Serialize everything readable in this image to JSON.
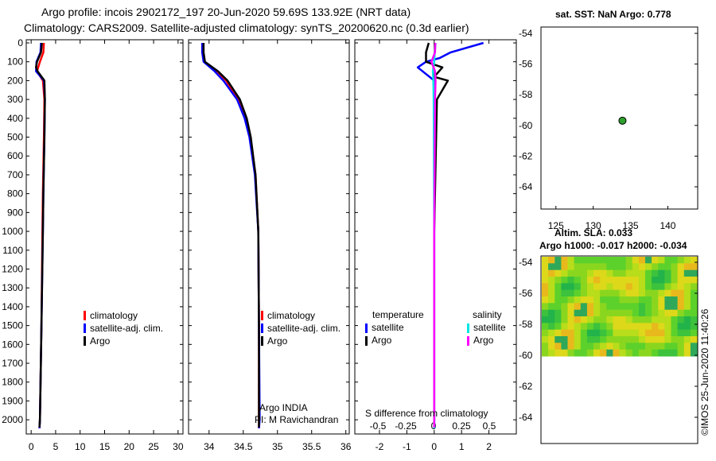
{
  "title": {
    "line1": "Argo profile: incois 2902172_197 20-Jun-2020 59.69S 133.92E (NRT data)",
    "line2": "Climatology: CARS2009. Satellite-adjusted climatology: synTS_20200620.nc (0.3d earlier)"
  },
  "colors": {
    "climatology": "#ff0000",
    "satellite": "#0000ff",
    "argo": "#000000",
    "sat_salinity": "#00e5e5",
    "argo_salinity": "#ff00ff",
    "float_marker": "#2ea02e"
  },
  "legend": {
    "climatology": "climatology",
    "satellite_adj": "satellite-adj. clim.",
    "argo": "Argo",
    "temperature": "temperature",
    "salinity": "salinity",
    "satellite": "satellite"
  },
  "credits": {
    "line1": "Argo INDIA",
    "line2": "PI: M Ravichandran"
  },
  "diff_xlabel": "S difference from climatology",
  "map_top": {
    "title": "sat. SST: NaN Argo: 0.778",
    "x_ticks": [
      "125",
      "130",
      "135",
      "140"
    ],
    "y_ticks": [
      "-54",
      "-56",
      "-58",
      "-60",
      "-62",
      "-64"
    ],
    "float_lon": 133.92,
    "float_lat": -59.69
  },
  "map_bottom": {
    "title1": "Altim. SLA: 0.033",
    "title2": "Argo h1000: -0.017 h2000: -0.034",
    "y_ticks": [
      "-54",
      "-56",
      "-58",
      "-60",
      "-62",
      "-64"
    ]
  },
  "footer": "©IMOS 25-Jun-2020 11:40:26",
  "chart_data": [
    {
      "type": "line",
      "name": "temperature",
      "ylim": [
        2050,
        0
      ],
      "xlim": [
        -1,
        31
      ],
      "y_ticks": [
        0,
        100,
        200,
        300,
        400,
        500,
        600,
        700,
        800,
        900,
        1000,
        1100,
        1200,
        1300,
        1400,
        1500,
        1600,
        1700,
        1800,
        1900,
        2000
      ],
      "x_ticks": [
        0,
        5,
        10,
        15,
        20,
        25,
        30
      ],
      "series": [
        {
          "name": "climatology",
          "color": "#ff0000",
          "depth": [
            0,
            50,
            100,
            150,
            200,
            300,
            500,
            800,
            1000,
            1500,
            2000,
            2045
          ],
          "values": [
            2.6,
            2.5,
            1.8,
            1.2,
            2.4,
            2.7,
            2.6,
            2.4,
            2.3,
            2.1,
            1.8,
            1.7
          ]
        },
        {
          "name": "satellite-adj. clim.",
          "color": "#0000ff",
          "depth": [
            0,
            50,
            100,
            150,
            200,
            300,
            500,
            800,
            1000,
            1500,
            2000,
            2045
          ],
          "values": [
            2.0,
            1.9,
            1.1,
            1.0,
            2.6,
            2.8,
            2.7,
            2.5,
            2.4,
            2.1,
            1.8,
            1.7
          ]
        },
        {
          "name": "Argo",
          "color": "#000000",
          "depth": [
            0,
            50,
            100,
            130,
            150,
            200,
            300,
            500,
            800,
            1000,
            1500,
            2000,
            2040
          ],
          "values": [
            2.2,
            2.0,
            1.2,
            1.0,
            1.3,
            2.7,
            2.8,
            2.7,
            2.5,
            2.4,
            2.1,
            1.8,
            1.7
          ]
        }
      ]
    },
    {
      "type": "line",
      "name": "salinity",
      "ylim": [
        2050,
        0
      ],
      "xlim": [
        33.7,
        36.05
      ],
      "x_ticks": [
        34,
        34.5,
        35,
        35.5,
        36
      ],
      "series": [
        {
          "name": "climatology",
          "color": "#ff0000",
          "depth": [
            0,
            50,
            100,
            150,
            200,
            300,
            400,
            500,
            700,
            1000,
            1500,
            2000,
            2045
          ],
          "values": [
            33.9,
            33.9,
            33.93,
            34.12,
            34.25,
            34.43,
            34.53,
            34.6,
            34.68,
            34.72,
            34.73,
            34.73,
            34.73
          ]
        },
        {
          "name": "satellite-adj. clim.",
          "color": "#0000ff",
          "depth": [
            0,
            50,
            100,
            150,
            200,
            300,
            400,
            500,
            700,
            1000,
            1500,
            2000,
            2045
          ],
          "values": [
            33.9,
            33.9,
            33.92,
            34.08,
            34.21,
            34.41,
            34.52,
            34.59,
            34.67,
            34.72,
            34.73,
            34.74,
            34.73
          ]
        },
        {
          "name": "Argo",
          "color": "#000000",
          "depth": [
            0,
            50,
            100,
            150,
            200,
            300,
            400,
            500,
            700,
            1000,
            1500,
            2000,
            2040
          ],
          "values": [
            33.92,
            33.92,
            33.94,
            34.13,
            34.27,
            34.45,
            34.55,
            34.61,
            34.68,
            34.72,
            34.73,
            34.73,
            34.73
          ]
        }
      ]
    },
    {
      "type": "line",
      "name": "difference",
      "ylim": [
        2050,
        0
      ],
      "xlim": [
        -2.9,
        3
      ],
      "x_ticks": [
        -2,
        -1,
        0,
        1,
        2
      ],
      "x_ticks_salinity": [
        "-0.5",
        "-0.25",
        "0",
        "0.25",
        "0.5"
      ],
      "xlabel": "S difference from climatology",
      "series": [
        {
          "name": "temperature satellite",
          "color": "#0000ff",
          "depth": [
            0,
            50,
            80,
            100,
            130,
            200,
            300,
            1000,
            2000,
            2045
          ],
          "values": [
            1.8,
            0.6,
            0.2,
            -0.3,
            -0.6,
            0.0,
            0.0,
            0.0,
            0.0,
            0.0
          ]
        },
        {
          "name": "temperature Argo",
          "color": "#000000",
          "depth": [
            0,
            50,
            100,
            130,
            180,
            200,
            300,
            1000,
            2000,
            2040
          ],
          "values": [
            -0.2,
            -0.3,
            -0.3,
            0.3,
            0.0,
            0.5,
            0.1,
            0.0,
            0.0,
            0.0
          ]
        },
        {
          "name": "salinity satellite",
          "color": "#00e5e5",
          "depth": [
            0,
            50,
            100,
            150,
            200,
            300,
            1000,
            2000,
            2045
          ],
          "values": [
            0.05,
            0.02,
            0.0,
            -0.05,
            -0.03,
            -0.02,
            0.0,
            0.0,
            0.0
          ]
        },
        {
          "name": "salinity Argo",
          "color": "#ff00ff",
          "depth": [
            0,
            50,
            100,
            150,
            200,
            300,
            1000,
            2000,
            2040
          ],
          "values": [
            0.04,
            0.03,
            -0.1,
            0.03,
            0.05,
            0.03,
            0.0,
            0.0,
            0.0
          ]
        }
      ]
    }
  ]
}
